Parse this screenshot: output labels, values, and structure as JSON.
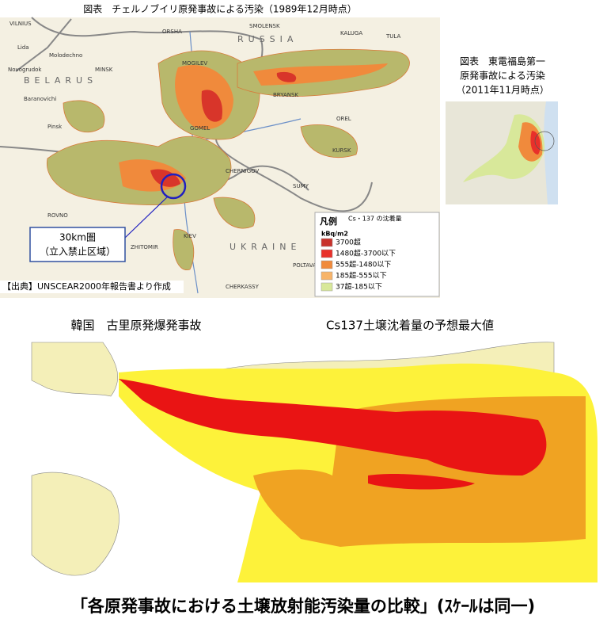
{
  "chernobyl": {
    "title": "図表　チェルノブイリ原発事故による汚染（1989年12月時点）",
    "labels": [
      "VILNIUS",
      "MINSK",
      "BELARUS",
      "RUSSIA",
      "ORSHA",
      "MOGILEV",
      "SMOLENSK",
      "KALUGA",
      "TULA",
      "BRYANSK",
      "GOMEL",
      "OREL",
      "KURSK",
      "CHERNIGOV",
      "SUMY",
      "KIEV",
      "ZHITOMIR",
      "ROVNO",
      "UKRAINE",
      "POLTAVA",
      "CHERKASSY",
      "Molodechno",
      "Baranovichi",
      "Novogrudok",
      "Lida",
      "Pinsk"
    ],
    "callout": [
      "30km圏",
      "（立入禁止区域）"
    ],
    "source": "【出典】UNSCEAR2000年報告書より作成",
    "legend": {
      "title": "凡例",
      "subtitle": "Cs・137 の沈着量",
      "unit": "kBq/m2",
      "items": [
        {
          "label": "3700超",
          "color": "#c8322c"
        },
        {
          "label": "1480超-3700以下",
          "color": "#e8302a"
        },
        {
          "label": "555超-1480以下",
          "color": "#f08a3c"
        },
        {
          "label": "185超-555以下",
          "color": "#f7b46a"
        },
        {
          "label": "37超-185以下",
          "color": "#d8e89a"
        }
      ]
    }
  },
  "fukushima": {
    "title": [
      "図表　東電福島第一",
      "原発事故による汚染",
      "（2011年11月時点）"
    ]
  },
  "kori": {
    "title": "韓国　古里原発爆発事故",
    "subtitle": "Cs137土壌沈着量の予想最大値"
  },
  "caption": "「各原発事故における土壌放射能汚染量の比較」(ｽｹｰﾙは同一)"
}
